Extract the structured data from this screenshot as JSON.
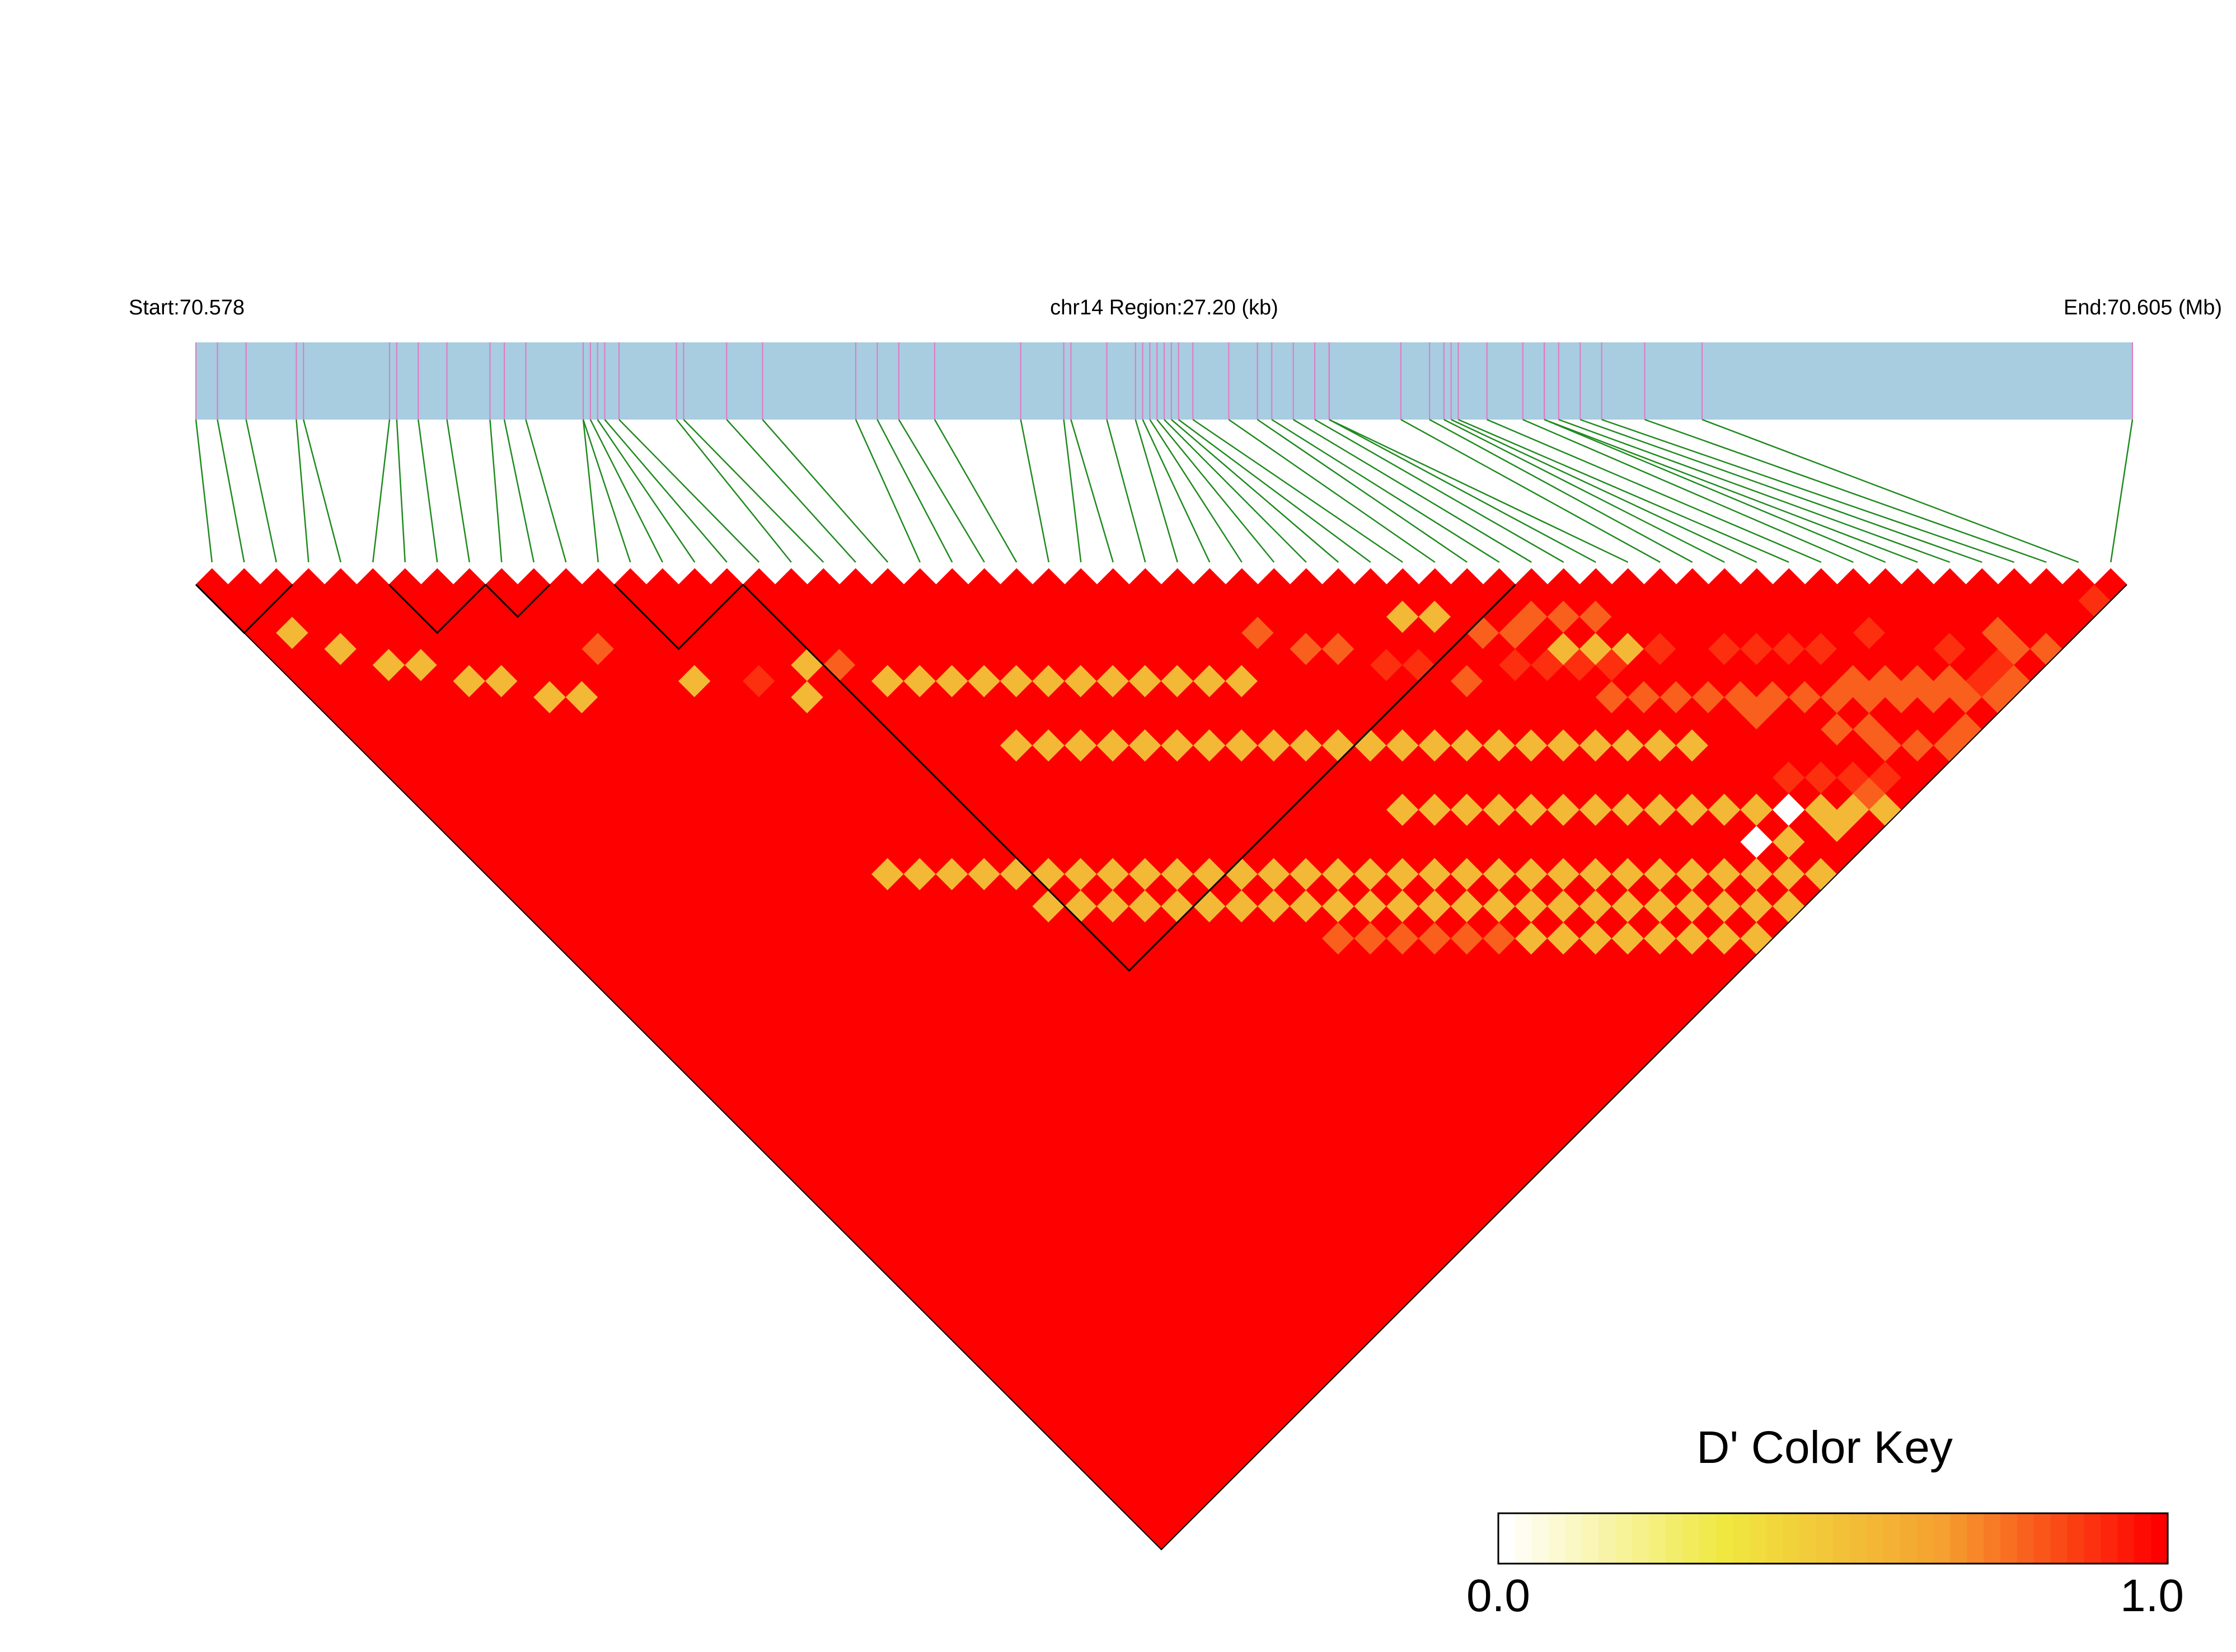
{
  "header": {
    "start_label": "Start:70.578",
    "region_label": "chr14 Region:27.20 (kb)",
    "end_label": "End:70.605 (Mb)"
  },
  "color_key": {
    "title": "D' Color Key",
    "min_label": "0.0",
    "max_label": "1.0",
    "stops": [
      "#ffffff",
      "#f0e840",
      "#f5a030",
      "#ff0000"
    ]
  },
  "colors": {
    "track_fill": "#a8cce0",
    "snp_tick": "#e377c2",
    "connector": "#1f8a1f",
    "ld_high": "#ff0000"
  },
  "chart_data": {
    "type": "heatmap",
    "title": "",
    "chromosome": "chr14",
    "region_start_mb": 70.578,
    "region_end_mb": 70.605,
    "region_length_kb": 27.2,
    "metric": "D'",
    "value_range": [
      0.0,
      1.0
    ],
    "n_snps": 60,
    "snp_positions_mb": [
      70.578,
      70.5783,
      70.5787,
      70.5794,
      70.5795,
      70.5807,
      70.5808,
      70.5811,
      70.5815,
      70.5821,
      70.5823,
      70.5826,
      70.5834,
      70.5834,
      70.5835,
      70.5836,
      70.5837,
      70.5839,
      70.5847,
      70.5848,
      70.5854,
      70.5859,
      70.5872,
      70.5875,
      70.5878,
      70.5883,
      70.5895,
      70.5901,
      70.5902,
      70.5907,
      70.5911,
      70.5912,
      70.5913,
      70.5914,
      70.5915,
      70.5916,
      70.5917,
      70.5919,
      70.5924,
      70.5928,
      70.593,
      70.5933,
      70.5936,
      70.5938,
      70.5938,
      70.5948,
      70.5952,
      70.5954,
      70.5955,
      70.5956,
      70.596,
      70.5965,
      70.5968,
      70.5968,
      70.597,
      70.5973,
      70.5976,
      70.5982,
      70.599,
      70.605
    ],
    "default_dprime": 1.0,
    "blocks": [
      [
        0,
        2
      ],
      [
        6,
        8
      ],
      [
        9,
        10
      ],
      [
        13,
        16
      ],
      [
        17,
        40
      ]
    ],
    "low_ld_pairs": [
      [
        1,
        4,
        0.55
      ],
      [
        2,
        6,
        0.55
      ],
      [
        3,
        8,
        0.55
      ],
      [
        4,
        9,
        0.55
      ],
      [
        5,
        11,
        0.55
      ],
      [
        6,
        12,
        0.55
      ],
      [
        7,
        14,
        0.55
      ],
      [
        8,
        15,
        0.55
      ],
      [
        10,
        14,
        0.8
      ],
      [
        12,
        18,
        0.55
      ],
      [
        14,
        20,
        0.9
      ],
      [
        15,
        22,
        0.55
      ],
      [
        16,
        21,
        0.55
      ],
      [
        17,
        22,
        0.8
      ],
      [
        18,
        24,
        0.55
      ],
      [
        19,
        25,
        0.55
      ],
      [
        20,
        26,
        0.55
      ],
      [
        21,
        27,
        0.55
      ],
      [
        22,
        28,
        0.55
      ],
      [
        23,
        29,
        0.55
      ],
      [
        24,
        30,
        0.55
      ],
      [
        25,
        31,
        0.55
      ],
      [
        26,
        32,
        0.55
      ],
      [
        27,
        33,
        0.55
      ],
      [
        28,
        34,
        0.55
      ],
      [
        29,
        35,
        0.55
      ],
      [
        20,
        30,
        0.55
      ],
      [
        21,
        31,
        0.55
      ],
      [
        22,
        32,
        0.55
      ],
      [
        23,
        33,
        0.55
      ],
      [
        24,
        34,
        0.55
      ],
      [
        25,
        35,
        0.55
      ],
      [
        26,
        36,
        0.55
      ],
      [
        27,
        37,
        0.55
      ],
      [
        28,
        38,
        0.55
      ],
      [
        29,
        39,
        0.55
      ],
      [
        30,
        40,
        0.55
      ],
      [
        31,
        41,
        0.55
      ],
      [
        32,
        42,
        0.55
      ],
      [
        33,
        43,
        0.55
      ],
      [
        34,
        44,
        0.55
      ],
      [
        35,
        45,
        0.55
      ],
      [
        36,
        46,
        0.55
      ],
      [
        37,
        47,
        0.55
      ],
      [
        38,
        48,
        0.55
      ],
      [
        39,
        49,
        0.55
      ],
      [
        40,
        50,
        0.55
      ],
      [
        41,
        51,
        0.55
      ],
      [
        30,
        44,
        0.55
      ],
      [
        31,
        45,
        0.55
      ],
      [
        32,
        46,
        0.55
      ],
      [
        33,
        47,
        0.55
      ],
      [
        34,
        48,
        0.55
      ],
      [
        35,
        49,
        0.55
      ],
      [
        36,
        50,
        0.55
      ],
      [
        37,
        51,
        0.55
      ],
      [
        38,
        52,
        0.55
      ],
      [
        39,
        53,
        0.55
      ],
      [
        40,
        54,
        0.55
      ],
      [
        41,
        55,
        0.55
      ],
      [
        42,
        56,
        0.55
      ],
      [
        43,
        57,
        0.55
      ],
      [
        44,
        58,
        0.55
      ],
      [
        45,
        59,
        0.55
      ],
      [
        40,
        56,
        0.0
      ],
      [
        42,
        56,
        0.0
      ],
      [
        41,
        57,
        0.55
      ],
      [
        43,
        58,
        0.55
      ],
      [
        12,
        30,
        0.55
      ],
      [
        13,
        31,
        0.55
      ],
      [
        14,
        32,
        0.55
      ],
      [
        15,
        33,
        0.55
      ],
      [
        16,
        34,
        0.55
      ],
      [
        17,
        35,
        0.55
      ],
      [
        18,
        36,
        0.55
      ],
      [
        19,
        37,
        0.55
      ],
      [
        20,
        38,
        0.55
      ],
      [
        21,
        39,
        0.55
      ],
      [
        22,
        40,
        0.55
      ],
      [
        23,
        41,
        0.55
      ],
      [
        24,
        42,
        0.55
      ],
      [
        25,
        43,
        0.55
      ],
      [
        26,
        44,
        0.55
      ],
      [
        27,
        45,
        0.55
      ],
      [
        28,
        46,
        0.55
      ],
      [
        29,
        47,
        0.55
      ],
      [
        30,
        48,
        0.55
      ],
      [
        31,
        49,
        0.55
      ],
      [
        32,
        50,
        0.55
      ],
      [
        33,
        51,
        0.55
      ],
      [
        34,
        52,
        0.55
      ],
      [
        35,
        53,
        0.55
      ],
      [
        36,
        54,
        0.55
      ],
      [
        37,
        55,
        0.55
      ],
      [
        38,
        56,
        0.55
      ],
      [
        39,
        57,
        0.55
      ],
      [
        40,
        58,
        0.55
      ],
      [
        41,
        59,
        0.55
      ],
      [
        24,
        44,
        0.55
      ],
      [
        25,
        45,
        0.55
      ],
      [
        26,
        46,
        0.55
      ],
      [
        27,
        47,
        0.55
      ],
      [
        28,
        48,
        0.55
      ],
      [
        29,
        49,
        0.55
      ],
      [
        30,
        50,
        0.55
      ],
      [
        31,
        51,
        0.55
      ],
      [
        32,
        52,
        0.55
      ],
      [
        33,
        53,
        0.55
      ],
      [
        34,
        54,
        0.55
      ],
      [
        35,
        55,
        0.55
      ],
      [
        36,
        56,
        0.55
      ],
      [
        37,
        57,
        0.55
      ],
      [
        38,
        58,
        0.55
      ],
      [
        39,
        59,
        0.55
      ],
      [
        16,
        36,
        0.55
      ],
      [
        17,
        37,
        0.55
      ],
      [
        18,
        38,
        0.55
      ],
      [
        19,
        39,
        0.55
      ],
      [
        20,
        40,
        0.55
      ],
      [
        21,
        41,
        0.55
      ],
      [
        22,
        42,
        0.55
      ],
      [
        23,
        43,
        0.55
      ],
      [
        24,
        46,
        0.8
      ],
      [
        25,
        47,
        0.8
      ],
      [
        26,
        48,
        0.8
      ],
      [
        27,
        49,
        0.8
      ],
      [
        28,
        50,
        0.8
      ],
      [
        29,
        51,
        0.8
      ],
      [
        30,
        52,
        0.55
      ],
      [
        31,
        53,
        0.55
      ],
      [
        32,
        54,
        0.55
      ],
      [
        33,
        55,
        0.55
      ],
      [
        34,
        56,
        0.55
      ],
      [
        35,
        57,
        0.55
      ],
      [
        36,
        58,
        0.55
      ],
      [
        37,
        59,
        0.55
      ],
      [
        40,
        47,
        0.8
      ],
      [
        41,
        48,
        0.8
      ],
      [
        42,
        49,
        0.8
      ],
      [
        43,
        50,
        0.8
      ],
      [
        44,
        51,
        0.8
      ],
      [
        45,
        52,
        0.8
      ],
      [
        46,
        53,
        0.8
      ],
      [
        47,
        54,
        0.8
      ],
      [
        48,
        55,
        0.8
      ],
      [
        49,
        56,
        0.8
      ],
      [
        50,
        57,
        0.8
      ],
      [
        51,
        58,
        0.8
      ],
      [
        52,
        59,
        0.8
      ],
      [
        53,
        59,
        0.8
      ],
      [
        54,
        58,
        0.8
      ],
      [
        55,
        59,
        0.8
      ],
      [
        31,
        34,
        0.8
      ],
      [
        32,
        36,
        0.8
      ],
      [
        33,
        37,
        0.8
      ],
      [
        34,
        39,
        0.9
      ],
      [
        35,
        40,
        0.9
      ],
      [
        36,
        42,
        0.8
      ],
      [
        36,
        38,
        0.55
      ],
      [
        37,
        39,
        0.55
      ],
      [
        47,
        57,
        0.8
      ],
      [
        48,
        58,
        0.8
      ],
      [
        49,
        59,
        0.8
      ],
      [
        50,
        59,
        0.8
      ],
      [
        48,
        54,
        0.8
      ],
      [
        49,
        55,
        0.8
      ],
      [
        50,
        56,
        0.8
      ],
      [
        51,
        57,
        0.8
      ],
      [
        52,
        58,
        0.9
      ],
      [
        53,
        58,
        0.9
      ],
      [
        45,
        57,
        0.9
      ],
      [
        46,
        58,
        0.9
      ],
      [
        38,
        43,
        0.9
      ],
      [
        39,
        44,
        0.9
      ],
      [
        40,
        45,
        0.9
      ],
      [
        41,
        46,
        0.9
      ],
      [
        40,
        44,
        0.55
      ],
      [
        41,
        45,
        0.55
      ],
      [
        42,
        46,
        0.55
      ],
      [
        38,
        41,
        0.8
      ],
      [
        39,
        42,
        0.8
      ],
      [
        40,
        42,
        0.8
      ],
      [
        41,
        43,
        0.8
      ],
      [
        42,
        44,
        0.8
      ],
      [
        46,
        55,
        0.8
      ],
      [
        47,
        56,
        0.8
      ],
      [
        44,
        56,
        0.9
      ],
      [
        45,
        58,
        0.8
      ],
      [
        43,
        55,
        0.9
      ],
      [
        58,
        59,
        0.9
      ],
      [
        50,
        53,
        0.9
      ],
      [
        52,
        56,
        0.9
      ],
      [
        54,
        57,
        0.8
      ],
      [
        44,
        52,
        0.8
      ],
      [
        43,
        47,
        0.9
      ],
      [
        45,
        49,
        0.9
      ],
      [
        46,
        50,
        0.9
      ],
      [
        47,
        51,
        0.9
      ],
      [
        48,
        52,
        0.9
      ]
    ]
  }
}
